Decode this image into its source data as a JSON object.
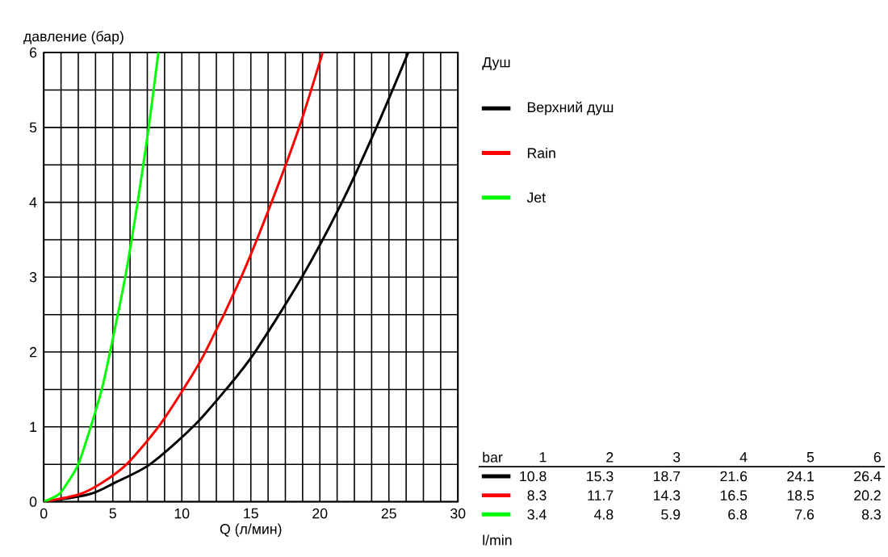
{
  "chart_data": {
    "type": "line",
    "xlabel": "Q (л/мин)",
    "ylabel": "давление (бар)",
    "legend_title": "Душ",
    "legend": "right",
    "grid": true,
    "xlim": [
      0,
      30
    ],
    "ylim": [
      0,
      6
    ],
    "xticks": [
      0,
      {
        "value": 1.25,
        "label": null
      },
      {
        "value": 2.5,
        "label": null
      },
      {
        "value": 3.75,
        "label": null
      },
      5,
      {
        "value": 6.25,
        "label": null
      },
      {
        "value": 7.5,
        "label": null
      },
      {
        "value": 8.75,
        "label": null
      },
      10,
      {
        "value": 11.25,
        "label": null
      },
      {
        "value": 12.5,
        "label": null
      },
      {
        "value": 13.75,
        "label": null
      },
      15,
      {
        "value": 16.25,
        "label": null
      },
      {
        "value": 17.5,
        "label": null
      },
      {
        "value": 18.75,
        "label": null
      },
      20,
      {
        "value": 21.25,
        "label": null
      },
      {
        "value": 22.5,
        "label": null
      },
      {
        "value": 23.75,
        "label": null
      },
      25,
      {
        "value": 26.25,
        "label": null
      },
      {
        "value": 27.5,
        "label": null
      },
      {
        "value": 28.75,
        "label": null
      },
      30
    ],
    "yticks": [
      0,
      {
        "value": 0.5,
        "label": null
      },
      1,
      {
        "value": 1.5,
        "label": null
      },
      2,
      {
        "value": 2.5,
        "label": null
      },
      3,
      {
        "value": 3.5,
        "label": null
      },
      4,
      {
        "value": 4.5,
        "label": null
      },
      5,
      {
        "value": 5.5,
        "label": null
      },
      6
    ],
    "series": [
      {
        "name": "Верхний душ",
        "color": "#000000",
        "x": [
          0,
          3.3,
          5.1,
          7.7,
          10.8,
          13.2,
          15.3,
          18.7,
          21.6,
          24.1,
          26.4
        ],
        "values": [
          0,
          0.1,
          0.25,
          0.5,
          1,
          1.5,
          2,
          3,
          4,
          5,
          6
        ]
      },
      {
        "name": "Rain",
        "color": "#ff0000",
        "x": [
          0,
          2.6,
          4.2,
          6.0,
          8.3,
          10.1,
          11.7,
          14.3,
          16.5,
          18.5,
          20.2
        ],
        "values": [
          0,
          0.1,
          0.25,
          0.5,
          1,
          1.5,
          2,
          3,
          4,
          5,
          6
        ]
      },
      {
        "name": "Jet",
        "color": "#00ff00",
        "x": [
          0,
          1.1,
          1.7,
          2.5,
          3.4,
          4.2,
          4.8,
          5.9,
          6.8,
          7.6,
          8.3
        ],
        "values": [
          0,
          0.1,
          0.25,
          0.5,
          1,
          1.5,
          2,
          3,
          4,
          5,
          6
        ]
      }
    ],
    "annotations": [
      "bar",
      "1",
      "2",
      "3",
      "4",
      "5",
      "6",
      "l/min",
      "10.8",
      "15.3",
      "18.7",
      "21.6",
      "24.1",
      "26.4",
      "8.3",
      "11.7",
      "14.3",
      "16.5",
      "18.5",
      "20.2",
      "3.4",
      "4.8",
      "5.9",
      "6.8",
      "7.6",
      "8.3"
    ]
  }
}
